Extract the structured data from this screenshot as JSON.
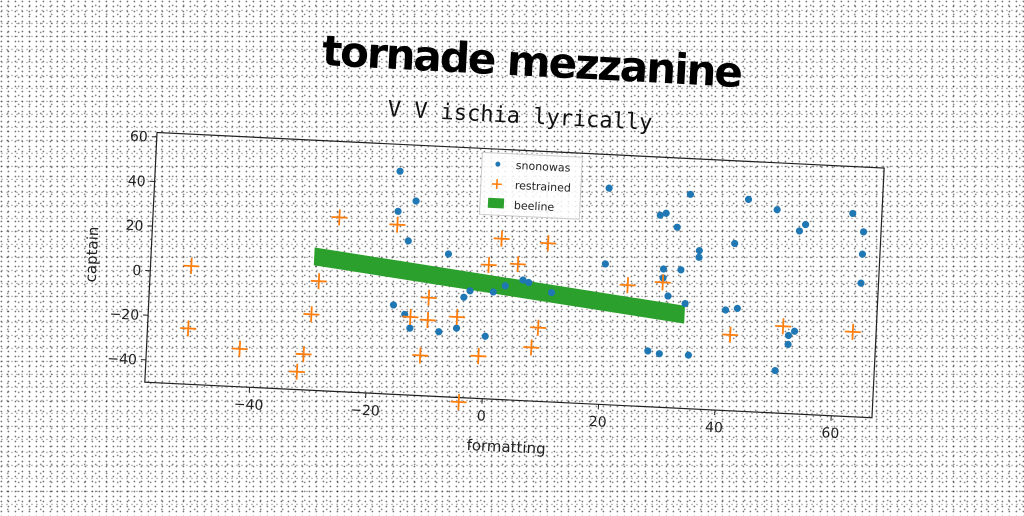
{
  "title": "tornade mezzanine",
  "subtitle": "V V ischia lyrically",
  "chart_data": {
    "type": "scatter",
    "xlabel": "formatting",
    "ylabel": "captain",
    "xlim": [
      -58,
      67
    ],
    "ylim": [
      -50,
      62
    ],
    "xticks": [
      -40,
      -20,
      0,
      20,
      40,
      60
    ],
    "yticks": [
      -40,
      -20,
      0,
      20,
      40,
      60
    ],
    "grid": false,
    "legend_placement": "top-center",
    "series": [
      {
        "name": "snonowas",
        "marker": "dot",
        "color": "#1f77b4",
        "points": [
          [
            -16,
            50
          ],
          [
            -13,
            37
          ],
          [
            -16,
            32
          ],
          [
            -14,
            19
          ],
          [
            -7,
            14
          ],
          [
            -16,
            -10
          ],
          [
            -14,
            -14
          ],
          [
            -13,
            -20
          ],
          [
            -8,
            -21
          ],
          [
            -5,
            -19
          ],
          [
            -3,
            -2
          ],
          [
            -4,
            -5
          ],
          [
            0,
            -22
          ],
          [
            1,
            -2
          ],
          [
            3,
            1
          ],
          [
            6,
            4
          ],
          [
            7,
            3
          ],
          [
            11,
            -1
          ],
          [
            20,
            47
          ],
          [
            30,
            37
          ],
          [
            29,
            36
          ],
          [
            32,
            31
          ],
          [
            30,
            12
          ],
          [
            33,
            12
          ],
          [
            30,
            8
          ],
          [
            20,
            13
          ],
          [
            31,
            0
          ],
          [
            34,
            46
          ],
          [
            34,
            -3
          ],
          [
            36,
            21
          ],
          [
            36,
            18
          ],
          [
            28,
            -25
          ],
          [
            30,
            -26
          ],
          [
            35,
            -26
          ],
          [
            41,
            -5
          ],
          [
            43,
            -4
          ],
          [
            42,
            25
          ],
          [
            44,
            45
          ],
          [
            49,
            41
          ],
          [
            52,
            -15
          ],
          [
            52,
            -19
          ],
          [
            53,
            -13
          ],
          [
            53,
            32
          ],
          [
            54,
            35
          ],
          [
            50,
            -31
          ],
          [
            62,
            41
          ],
          [
            64,
            33
          ],
          [
            64,
            23
          ],
          [
            64,
            10
          ]
        ]
      },
      {
        "name": "restrained",
        "marker": "plus",
        "color": "#ff7f0e",
        "points": [
          [
            -51,
            3
          ],
          [
            -51,
            -25
          ],
          [
            -42,
            -33
          ],
          [
            -31,
            -34
          ],
          [
            -32,
            -42
          ],
          [
            -30,
            -16
          ],
          [
            -29,
            -1
          ],
          [
            -26,
            28
          ],
          [
            -16,
            26
          ],
          [
            -13,
            -15
          ],
          [
            -10,
            -6
          ],
          [
            -10,
            -16
          ],
          [
            -11,
            -32
          ],
          [
            -5,
            -14
          ],
          [
            -4,
            -52
          ],
          [
            -1,
            -31
          ],
          [
            0,
            10
          ],
          [
            2,
            22
          ],
          [
            5,
            11
          ],
          [
            8,
            -26
          ],
          [
            9,
            -17
          ],
          [
            10,
            21
          ],
          [
            24,
            4
          ],
          [
            30,
            6
          ],
          [
            42,
            -16
          ],
          [
            51,
            -11
          ],
          [
            63,
            -12
          ]
        ]
      },
      {
        "name": "beeline",
        "marker": "band",
        "color": "#2ca02c",
        "points": [
          [
            -30,
            10
          ],
          [
            34,
            -8
          ]
        ],
        "band_height": 8
      }
    ]
  }
}
